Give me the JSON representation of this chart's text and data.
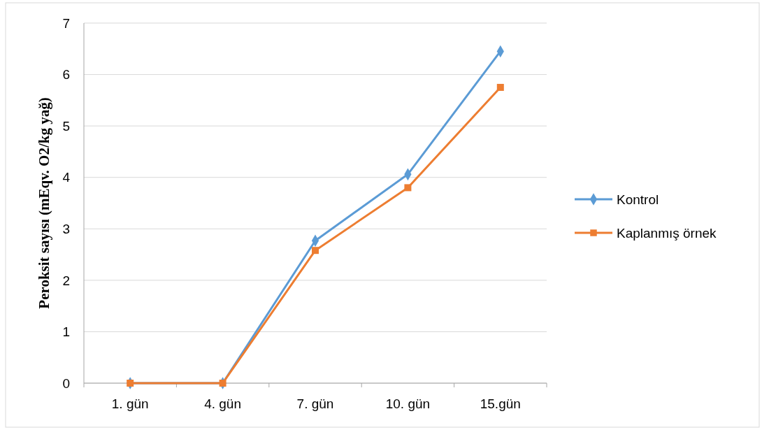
{
  "chart_data": {
    "type": "line",
    "ylabel": "Peroksit sayısı (mEqv. O2/kg yağ)",
    "categories": [
      "1. gün",
      "4. gün",
      "7. gün",
      "10. gün",
      "15.gün"
    ],
    "series": [
      {
        "name": "Kontrol",
        "color": "#5b9bd5",
        "marker": "diamond",
        "values": [
          0,
          0,
          2.77,
          4.06,
          6.45
        ]
      },
      {
        "name": "Kaplanmış örnek",
        "color": "#ed7d31",
        "marker": "square",
        "values": [
          0,
          0,
          2.58,
          3.8,
          5.75
        ]
      }
    ],
    "ylim": [
      0,
      7
    ],
    "yticks": [
      0,
      1,
      2,
      3,
      4,
      5,
      6,
      7
    ],
    "grid": "y",
    "legend": "right",
    "line_style": "solid"
  }
}
